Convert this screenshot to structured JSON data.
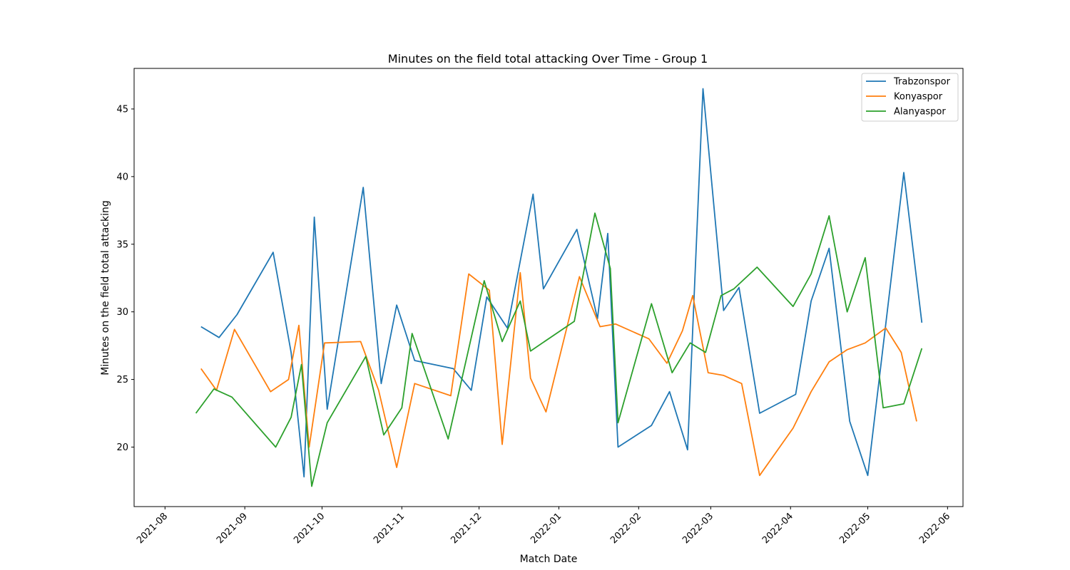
{
  "chart_data": {
    "type": "line",
    "title": "Minutes on the field total attacking Over Time - Group 1",
    "xlabel": "Match Date",
    "ylabel": "Minutes on the field total attacking",
    "x_ticks": [
      "2021-08",
      "2021-09",
      "2021-10",
      "2021-11",
      "2021-12",
      "2022-01",
      "2022-02",
      "2022-03",
      "2022-04",
      "2022-05",
      "2022-06"
    ],
    "y_ticks": [
      20,
      25,
      30,
      35,
      40,
      45
    ],
    "xlim": [
      "2021-07-20",
      "2022-06-07"
    ],
    "ylim": [
      15.6,
      48.0
    ],
    "legend_position": "top-right",
    "grid": false,
    "series": [
      {
        "name": "Trabzonspor",
        "color": "#1f77b4",
        "points": [
          [
            "2021-08-15",
            28.9
          ],
          [
            "2021-08-22",
            28.1
          ],
          [
            "2021-08-29",
            29.8
          ],
          [
            "2021-09-12",
            34.4
          ],
          [
            "2021-09-19",
            27.0
          ],
          [
            "2021-09-24",
            17.8
          ],
          [
            "2021-09-28",
            37.0
          ],
          [
            "2021-10-03",
            22.8
          ],
          [
            "2021-10-17",
            39.2
          ],
          [
            "2021-10-24",
            24.7
          ],
          [
            "2021-10-30",
            30.5
          ],
          [
            "2021-11-06",
            26.4
          ],
          [
            "2021-11-21",
            25.8
          ],
          [
            "2021-11-28",
            24.2
          ],
          [
            "2021-12-04",
            31.1
          ],
          [
            "2021-12-12",
            28.8
          ],
          [
            "2021-12-22",
            38.7
          ],
          [
            "2021-12-26",
            31.7
          ],
          [
            "2022-01-08",
            36.1
          ],
          [
            "2022-01-16",
            29.5
          ],
          [
            "2022-01-20",
            35.8
          ],
          [
            "2022-01-24",
            20.0
          ],
          [
            "2022-02-06",
            21.6
          ],
          [
            "2022-02-13",
            24.1
          ],
          [
            "2022-02-20",
            19.8
          ],
          [
            "2022-02-26",
            46.5
          ],
          [
            "2022-03-06",
            30.1
          ],
          [
            "2022-03-12",
            31.8
          ],
          [
            "2022-03-20",
            22.5
          ],
          [
            "2022-04-03",
            23.9
          ],
          [
            "2022-04-09",
            30.8
          ],
          [
            "2022-04-16",
            34.7
          ],
          [
            "2022-04-24",
            21.9
          ],
          [
            "2022-05-01",
            17.9
          ],
          [
            "2022-05-15",
            40.3
          ],
          [
            "2022-05-22",
            29.2
          ]
        ]
      },
      {
        "name": "Konyaspor",
        "color": "#ff7f0e",
        "points": [
          [
            "2021-08-15",
            25.8
          ],
          [
            "2021-08-21",
            24.2
          ],
          [
            "2021-08-28",
            28.7
          ],
          [
            "2021-09-11",
            24.1
          ],
          [
            "2021-09-18",
            25.0
          ],
          [
            "2021-09-22",
            29.0
          ],
          [
            "2021-09-26",
            20.0
          ],
          [
            "2021-10-02",
            27.7
          ],
          [
            "2021-10-16",
            27.8
          ],
          [
            "2021-10-23",
            24.2
          ],
          [
            "2021-10-30",
            18.5
          ],
          [
            "2021-11-06",
            24.7
          ],
          [
            "2021-11-20",
            23.8
          ],
          [
            "2021-11-27",
            32.8
          ],
          [
            "2021-12-05",
            31.6
          ],
          [
            "2021-12-10",
            20.2
          ],
          [
            "2021-12-17",
            32.9
          ],
          [
            "2021-12-21",
            25.1
          ],
          [
            "2021-12-27",
            22.6
          ],
          [
            "2022-01-09",
            32.6
          ],
          [
            "2022-01-17",
            28.9
          ],
          [
            "2022-01-23",
            29.1
          ],
          [
            "2022-02-05",
            28.0
          ],
          [
            "2022-02-12",
            26.2
          ],
          [
            "2022-02-18",
            28.6
          ],
          [
            "2022-02-22",
            31.2
          ],
          [
            "2022-02-28",
            25.5
          ],
          [
            "2022-03-06",
            25.3
          ],
          [
            "2022-03-13",
            24.7
          ],
          [
            "2022-03-20",
            17.9
          ],
          [
            "2022-04-02",
            21.4
          ],
          [
            "2022-04-09",
            24.1
          ],
          [
            "2022-04-16",
            26.3
          ],
          [
            "2022-04-23",
            27.2
          ],
          [
            "2022-04-30",
            27.7
          ],
          [
            "2022-05-08",
            28.8
          ],
          [
            "2022-05-14",
            27.0
          ],
          [
            "2022-05-20",
            21.9
          ]
        ]
      },
      {
        "name": "Alanyaspor",
        "color": "#2ca02c",
        "points": [
          [
            "2021-08-13",
            22.5
          ],
          [
            "2021-08-20",
            24.3
          ],
          [
            "2021-08-27",
            23.7
          ],
          [
            "2021-09-13",
            20.0
          ],
          [
            "2021-09-19",
            22.2
          ],
          [
            "2021-09-23",
            26.1
          ],
          [
            "2021-09-27",
            17.1
          ],
          [
            "2021-10-03",
            21.8
          ],
          [
            "2021-10-18",
            26.7
          ],
          [
            "2021-10-25",
            20.9
          ],
          [
            "2021-11-01",
            22.9
          ],
          [
            "2021-11-05",
            28.4
          ],
          [
            "2021-11-19",
            20.6
          ],
          [
            "2021-12-03",
            32.3
          ],
          [
            "2021-12-10",
            27.8
          ],
          [
            "2021-12-17",
            30.8
          ],
          [
            "2021-12-21",
            27.1
          ],
          [
            "2022-01-07",
            29.3
          ],
          [
            "2022-01-15",
            37.3
          ],
          [
            "2022-01-21",
            33.2
          ],
          [
            "2022-01-24",
            21.8
          ],
          [
            "2022-02-06",
            30.6
          ],
          [
            "2022-02-14",
            25.5
          ],
          [
            "2022-02-21",
            27.7
          ],
          [
            "2022-02-27",
            27.0
          ],
          [
            "2022-03-05",
            31.2
          ],
          [
            "2022-03-10",
            31.7
          ],
          [
            "2022-03-19",
            33.3
          ],
          [
            "2022-04-02",
            30.4
          ],
          [
            "2022-04-09",
            32.8
          ],
          [
            "2022-04-16",
            37.1
          ],
          [
            "2022-04-23",
            30.0
          ],
          [
            "2022-04-30",
            34.0
          ],
          [
            "2022-05-07",
            22.9
          ],
          [
            "2022-05-15",
            23.2
          ],
          [
            "2022-05-22",
            27.3
          ]
        ]
      }
    ]
  }
}
